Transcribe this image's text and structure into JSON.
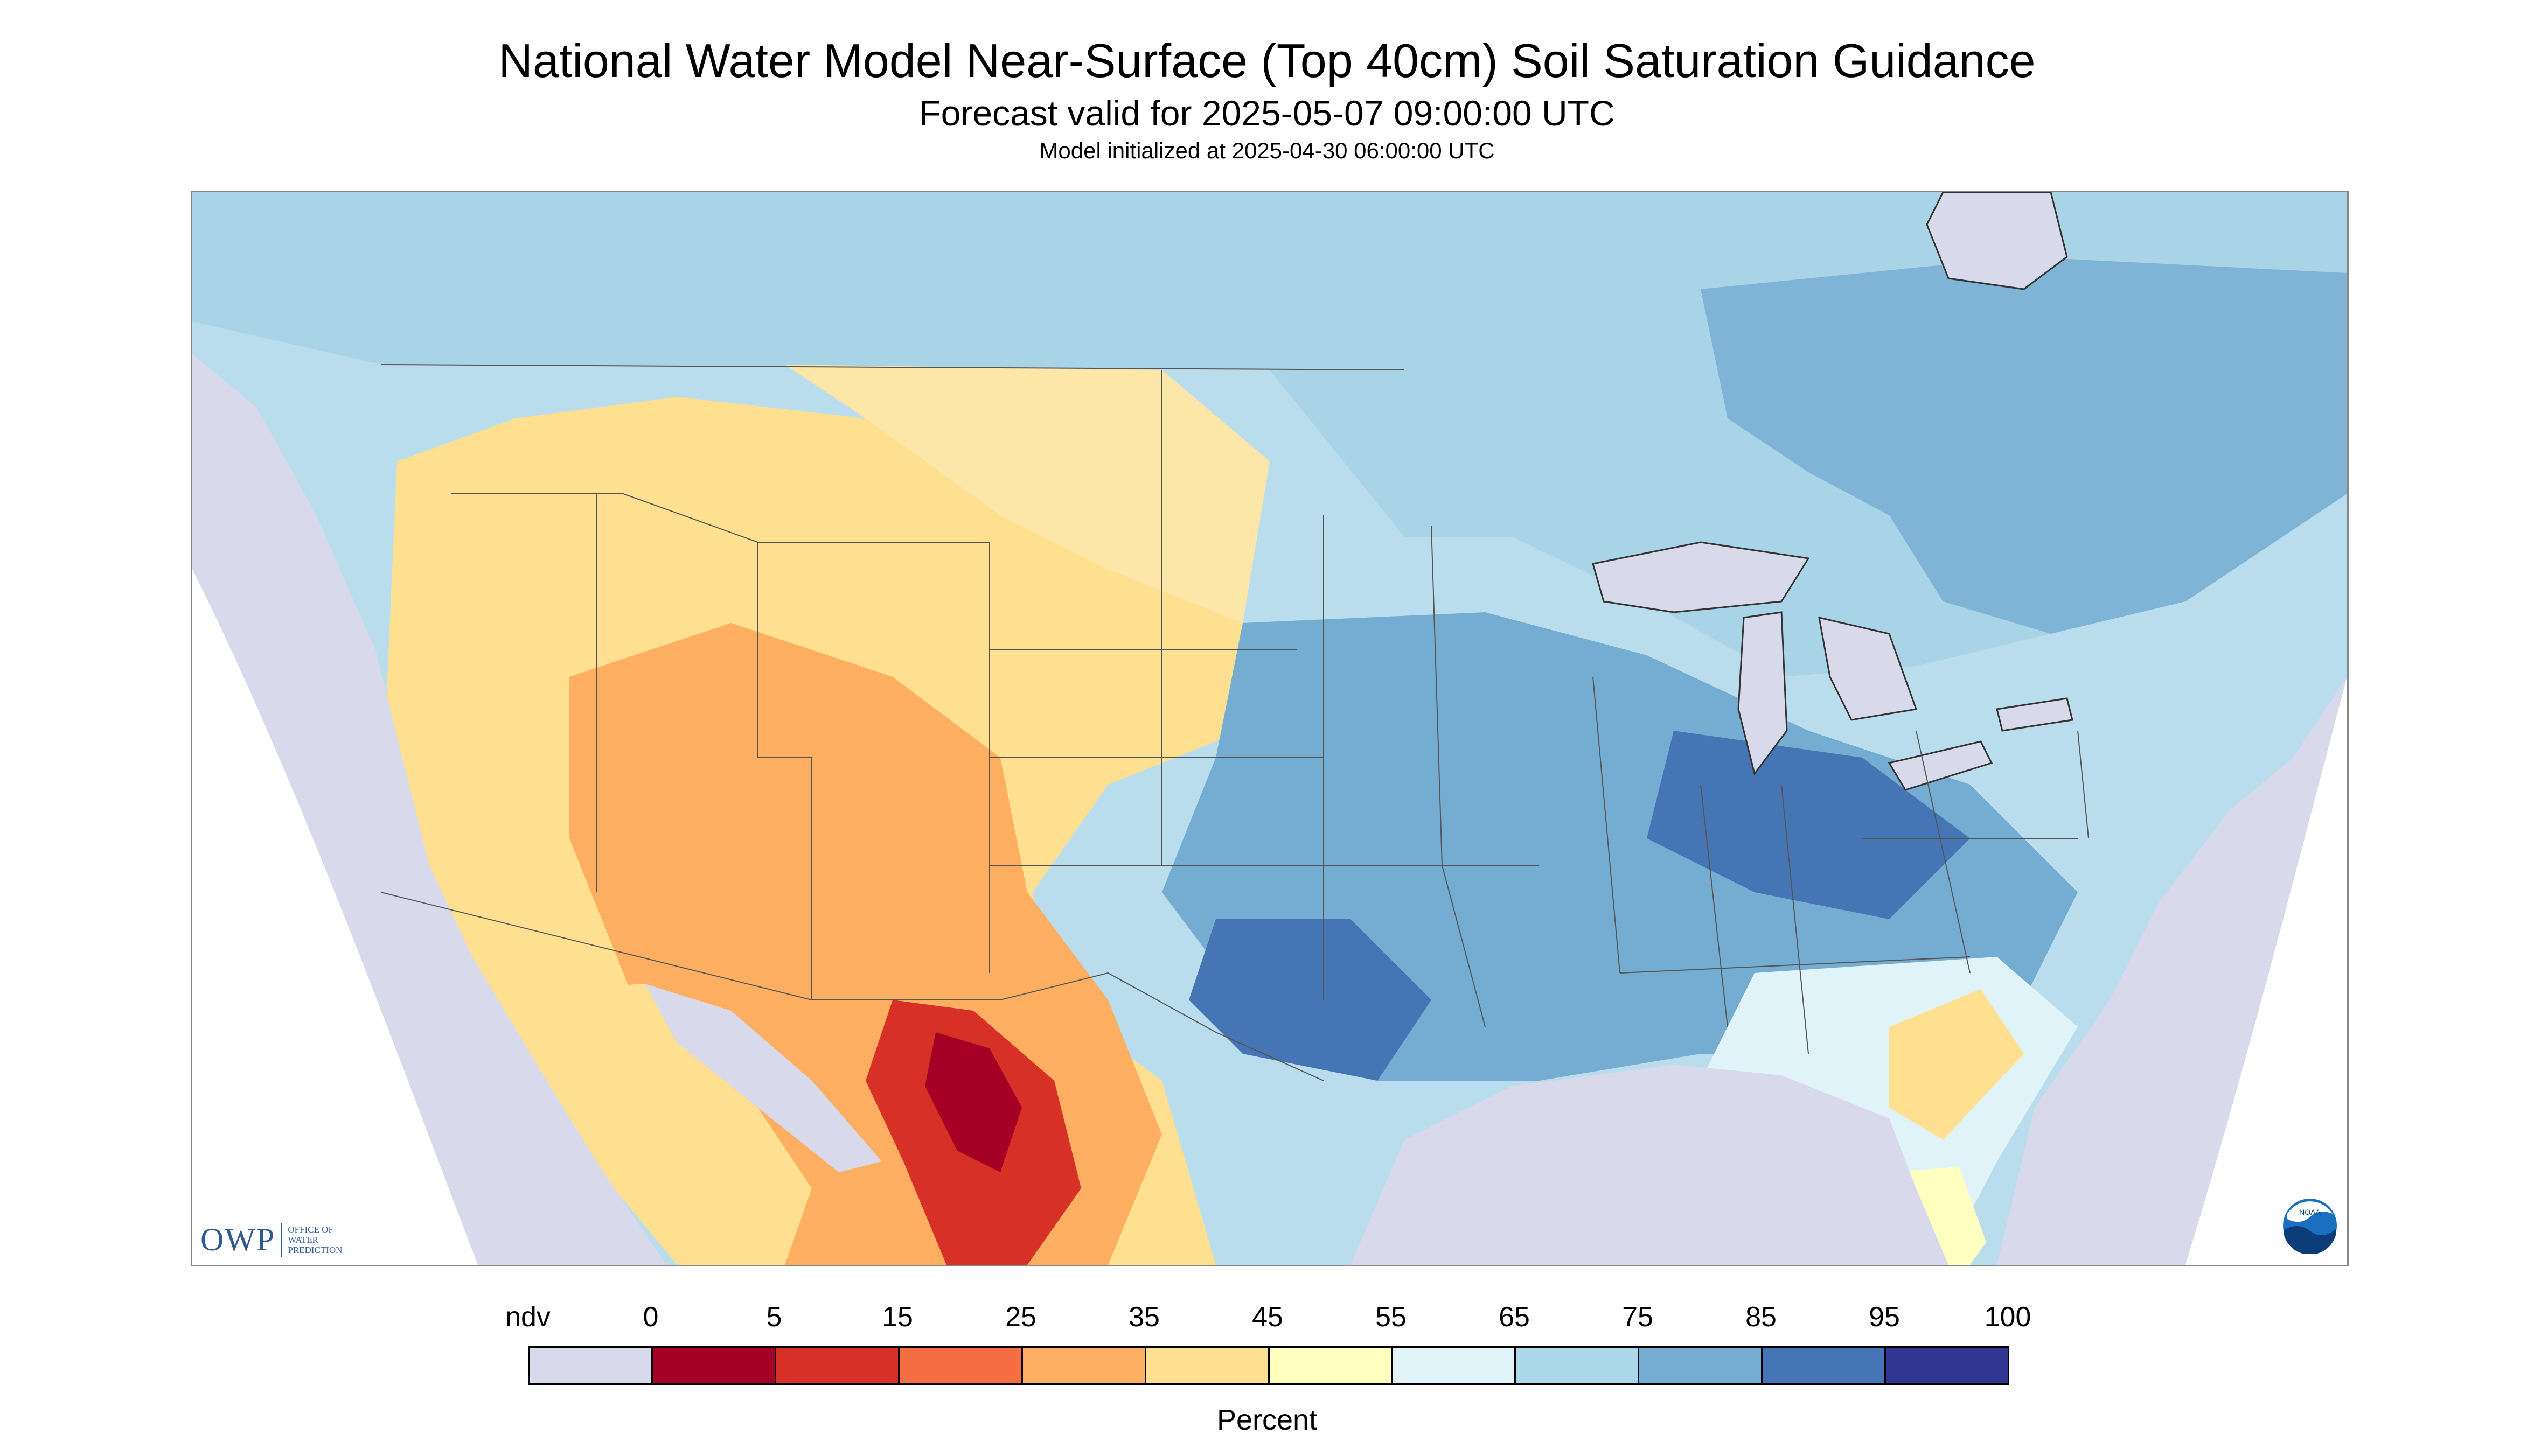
{
  "title": "National Water Model Near-Surface (Top 40cm) Soil Saturation Guidance",
  "subtitle": "Forecast valid for 2025-05-07 09:00:00 UTC",
  "init_line": "Model initialized at 2025-04-30 06:00:00 UTC",
  "logo_owp": {
    "main": "OWP",
    "sub": [
      "OFFICE OF",
      "WATER",
      "PREDICTION"
    ]
  },
  "logo_noaa": "NOAA",
  "legend": {
    "labels": [
      "ndv",
      "0",
      "5",
      "15",
      "25",
      "35",
      "45",
      "55",
      "65",
      "75",
      "85",
      "95",
      "100"
    ],
    "colors": [
      "#d9d9ec",
      "#a50026",
      "#d73027",
      "#f46d43",
      "#fdae61",
      "#fee090",
      "#ffffbf",
      "#e0f3f8",
      "#abd9e9",
      "#74add1",
      "#4575b4",
      "#313695"
    ],
    "units": "Percent"
  },
  "map_colors": {
    "ocean": "#d9d9ec",
    "land": "#b9ddec",
    "outside": "#ffffff"
  }
}
